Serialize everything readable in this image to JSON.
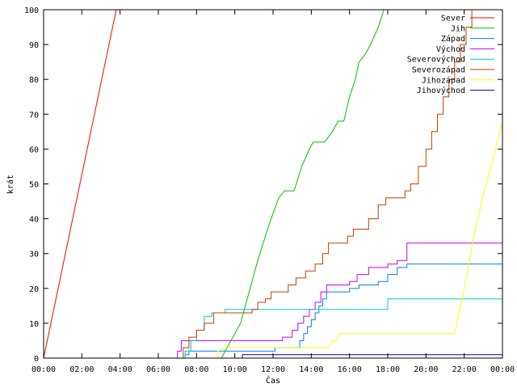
{
  "chart_data": {
    "type": "line",
    "xlabel": "Čas",
    "ylabel": "krát",
    "xlim": [
      0,
      24
    ],
    "ylim": [
      0,
      100
    ],
    "x_tick_labels": [
      "00:00",
      "02:00",
      "04:00",
      "06:00",
      "08:00",
      "10:00",
      "12:00",
      "14:00",
      "16:00",
      "18:00",
      "20:00",
      "22:00",
      "00:00"
    ],
    "y_ticks": [
      0,
      10,
      20,
      30,
      40,
      50,
      60,
      70,
      80,
      90,
      100
    ],
    "grid": false,
    "legend_position": "top-right",
    "series": [
      {
        "name": "Sever",
        "color": "#ff0000",
        "step": false,
        "points": [
          [
            0,
            0
          ],
          [
            3.8,
            100
          ]
        ]
      },
      {
        "name": "Jih",
        "color": "#00c000",
        "step": false,
        "points": [
          [
            9.3,
            0
          ],
          [
            9.8,
            5
          ],
          [
            10.3,
            10
          ],
          [
            10.8,
            20
          ],
          [
            11.2,
            28
          ],
          [
            11.6,
            35
          ],
          [
            11.9,
            40
          ],
          [
            12.3,
            46
          ],
          [
            12.6,
            48
          ],
          [
            13.1,
            48
          ],
          [
            13.5,
            55
          ],
          [
            13.9,
            60
          ],
          [
            14.1,
            62
          ],
          [
            14.7,
            62
          ],
          [
            15.1,
            65
          ],
          [
            15.4,
            68
          ],
          [
            15.7,
            68
          ],
          [
            16.0,
            75
          ],
          [
            16.3,
            80
          ],
          [
            16.5,
            85
          ],
          [
            16.8,
            87
          ],
          [
            17.1,
            90
          ],
          [
            17.5,
            95
          ],
          [
            17.8,
            100
          ]
        ]
      },
      {
        "name": "Západ",
        "color": "#0080ff",
        "step": true,
        "points": [
          [
            0,
            0
          ],
          [
            7.4,
            1
          ],
          [
            7.6,
            2
          ],
          [
            12.1,
            3
          ],
          [
            13.4,
            5
          ],
          [
            13.6,
            7
          ],
          [
            13.8,
            9
          ],
          [
            14.0,
            11
          ],
          [
            14.2,
            13
          ],
          [
            14.4,
            15
          ],
          [
            14.6,
            17
          ],
          [
            14.8,
            19
          ],
          [
            16.0,
            20
          ],
          [
            16.5,
            21
          ],
          [
            17.5,
            22
          ],
          [
            18.0,
            24
          ],
          [
            18.5,
            26
          ],
          [
            19.0,
            27
          ],
          [
            24,
            27
          ]
        ]
      },
      {
        "name": "Východ",
        "color": "#c000ff",
        "step": true,
        "points": [
          [
            0,
            0
          ],
          [
            7.0,
            2
          ],
          [
            7.2,
            5
          ],
          [
            12.5,
            6
          ],
          [
            13.0,
            8
          ],
          [
            13.3,
            10
          ],
          [
            13.6,
            12
          ],
          [
            13.9,
            14
          ],
          [
            14.2,
            16
          ],
          [
            14.5,
            19
          ],
          [
            14.8,
            21
          ],
          [
            16.0,
            22
          ],
          [
            16.4,
            24
          ],
          [
            17.0,
            26
          ],
          [
            18.0,
            27
          ],
          [
            18.5,
            28
          ],
          [
            19.0,
            33
          ],
          [
            24,
            33
          ]
        ]
      },
      {
        "name": "Severovýchod",
        "color": "#00c8c8",
        "step": true,
        "points": [
          [
            0,
            0
          ],
          [
            7.4,
            2
          ],
          [
            7.7,
            5
          ],
          [
            8.0,
            8
          ],
          [
            8.4,
            12
          ],
          [
            8.8,
            13
          ],
          [
            9.5,
            14
          ],
          [
            18.0,
            17
          ],
          [
            24,
            17
          ]
        ]
      },
      {
        "name": "Severozápad",
        "color": "#c04000",
        "step": true,
        "points": [
          [
            0,
            0
          ],
          [
            7.3,
            3
          ],
          [
            7.6,
            6
          ],
          [
            8.0,
            8
          ],
          [
            8.4,
            10
          ],
          [
            8.9,
            13
          ],
          [
            10.9,
            14
          ],
          [
            11.2,
            16
          ],
          [
            11.6,
            17
          ],
          [
            11.9,
            19
          ],
          [
            12.8,
            21
          ],
          [
            13.2,
            23
          ],
          [
            13.7,
            25
          ],
          [
            14.2,
            27
          ],
          [
            14.6,
            30
          ],
          [
            14.9,
            33
          ],
          [
            15.9,
            35
          ],
          [
            16.2,
            37
          ],
          [
            17.0,
            40
          ],
          [
            17.5,
            44
          ],
          [
            17.9,
            46
          ],
          [
            18.9,
            48
          ],
          [
            19.2,
            50
          ],
          [
            19.6,
            55
          ],
          [
            20.0,
            60
          ],
          [
            20.3,
            65
          ],
          [
            20.6,
            70
          ],
          [
            20.9,
            75
          ],
          [
            21.2,
            80
          ],
          [
            21.5,
            85
          ],
          [
            21.8,
            90
          ],
          [
            22.1,
            95
          ],
          [
            22.4,
            100
          ]
        ]
      },
      {
        "name": "Jihozápad",
        "color": "#ffff00",
        "step": false,
        "points": [
          [
            0,
            0
          ],
          [
            9.1,
            0
          ],
          [
            9.1,
            2
          ],
          [
            9.5,
            3
          ],
          [
            14.9,
            3
          ],
          [
            15.1,
            5
          ],
          [
            15.3,
            5
          ],
          [
            15.5,
            7
          ],
          [
            21.5,
            7
          ],
          [
            22.0,
            20
          ],
          [
            22.5,
            35
          ],
          [
            23.0,
            47
          ],
          [
            23.5,
            57
          ],
          [
            24,
            68
          ]
        ]
      },
      {
        "name": "Jihovýchod",
        "color": "#0000a0",
        "step": true,
        "points": [
          [
            0,
            0
          ],
          [
            10.4,
            1
          ],
          [
            24,
            1
          ]
        ]
      }
    ]
  }
}
